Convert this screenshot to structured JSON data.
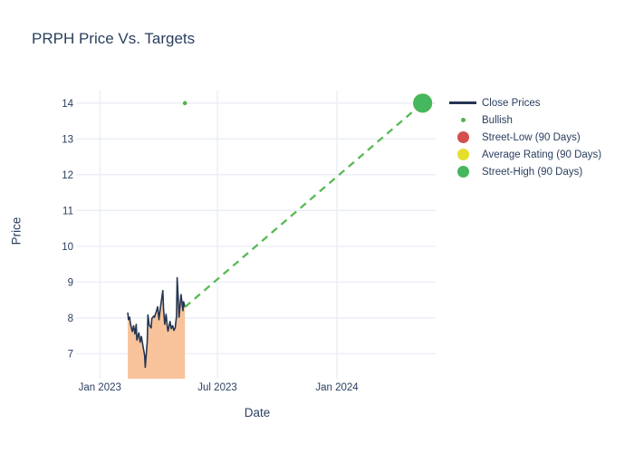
{
  "title": "PRPH Price Vs. Targets",
  "colors": {
    "background": "#ffffff",
    "text": "#2a3f5f",
    "gridline": "#e9eef5",
    "close_line": "#253652",
    "close_fill": "#f8c39a",
    "bullish_green": "#4db44d",
    "trend_green": "#58ba53",
    "street_low_red": "#d4504e",
    "average_yellow": "#e4df2b",
    "street_high_green": "#45b75c"
  },
  "legend": {
    "items": [
      {
        "label": "Close Prices",
        "marker": "line",
        "color": "#253652"
      },
      {
        "label": "Bullish",
        "marker": "dot-small",
        "color": "#4db44d"
      },
      {
        "label": "Street-Low (90 Days)",
        "marker": "dot-large",
        "color": "#d4504e"
      },
      {
        "label": "Average Rating (90 Days)",
        "marker": "dot-large",
        "color": "#e4df2b"
      },
      {
        "label": "Street-High (90 Days)",
        "marker": "dot-large",
        "color": "#45b75c"
      }
    ]
  },
  "chart_data": {
    "type": "line",
    "title": "PRPH Price Vs. Targets",
    "xlabel": "Date",
    "ylabel": "Price",
    "x_domain": [
      "2022-12-01",
      "2024-06-01"
    ],
    "ylim": [
      6.3,
      14.35
    ],
    "yticks": [
      7,
      8,
      9,
      10,
      11,
      12,
      13,
      14
    ],
    "xticks": [
      {
        "date": "2023-01-01",
        "label": "Jan 2023"
      },
      {
        "date": "2023-07-01",
        "label": "Jul 2023"
      },
      {
        "date": "2024-01-01",
        "label": "Jan 2024"
      }
    ],
    "grid": true,
    "legend_position": "right",
    "series": [
      {
        "name": "Close Prices",
        "type": "line",
        "color": "#253652",
        "fill_color": "#f8c39a",
        "fill_to_bottom": true,
        "points": [
          [
            "2023-02-13",
            8.15
          ],
          [
            "2023-02-14",
            7.95
          ],
          [
            "2023-02-16",
            8.02
          ],
          [
            "2023-02-17",
            7.85
          ],
          [
            "2023-02-20",
            7.62
          ],
          [
            "2023-02-22",
            7.78
          ],
          [
            "2023-02-24",
            7.55
          ],
          [
            "2023-02-26",
            7.82
          ],
          [
            "2023-02-27",
            7.38
          ],
          [
            "2023-03-02",
            7.58
          ],
          [
            "2023-03-04",
            7.32
          ],
          [
            "2023-03-06",
            7.48
          ],
          [
            "2023-03-08",
            7.25
          ],
          [
            "2023-03-11",
            6.95
          ],
          [
            "2023-03-12",
            6.62
          ],
          [
            "2023-03-15",
            7.35
          ],
          [
            "2023-03-16",
            8.08
          ],
          [
            "2023-03-18",
            7.8
          ],
          [
            "2023-03-21",
            7.72
          ],
          [
            "2023-03-22",
            7.98
          ],
          [
            "2023-03-25",
            8.05
          ],
          [
            "2023-03-26",
            8.02
          ],
          [
            "2023-03-29",
            8.18
          ],
          [
            "2023-03-31",
            8.31
          ],
          [
            "2023-04-02",
            7.95
          ],
          [
            "2023-04-04",
            8.25
          ],
          [
            "2023-04-08",
            8.76
          ],
          [
            "2023-04-09",
            8.28
          ],
          [
            "2023-04-11",
            7.82
          ],
          [
            "2023-04-13",
            8.1
          ],
          [
            "2023-04-15",
            7.73
          ],
          [
            "2023-04-16",
            7.63
          ],
          [
            "2023-04-19",
            7.9
          ],
          [
            "2023-04-21",
            7.7
          ],
          [
            "2023-04-23",
            7.78
          ],
          [
            "2023-04-25",
            7.65
          ],
          [
            "2023-04-27",
            7.72
          ],
          [
            "2023-04-29",
            8.05
          ],
          [
            "2023-04-30",
            9.12
          ],
          [
            "2023-05-02",
            8.45
          ],
          [
            "2023-05-03",
            8.02
          ],
          [
            "2023-05-06",
            8.65
          ],
          [
            "2023-05-09",
            8.2
          ],
          [
            "2023-05-10",
            8.45
          ],
          [
            "2023-05-12",
            8.3
          ]
        ]
      },
      {
        "name": "Bullish",
        "type": "scatter",
        "color": "#4db44d",
        "marker_radius": 2.3,
        "points": [
          [
            "2023-05-12",
            14
          ]
        ]
      },
      {
        "name": "Street-Low (90 Days)",
        "type": "scatter",
        "color": "#d4504e",
        "marker_radius": 10.5,
        "points": [
          [
            "2024-05-12",
            14
          ]
        ]
      },
      {
        "name": "Average Rating (90 Days)",
        "type": "scatter",
        "color": "#e4df2b",
        "marker_radius": 10.5,
        "points": [
          [
            "2024-05-12",
            14
          ]
        ]
      },
      {
        "name": "Street-High (90 Days)",
        "type": "scatter",
        "color": "#45b75c",
        "marker_radius": 10.5,
        "points": [
          [
            "2024-05-12",
            14
          ]
        ]
      }
    ],
    "trendline": {
      "style": "dashed",
      "color": "#58ba53",
      "width": 2.3,
      "from": {
        "date": "2023-05-12",
        "price": 8.3
      },
      "to": {
        "date": "2024-05-12",
        "price": 14
      }
    }
  }
}
